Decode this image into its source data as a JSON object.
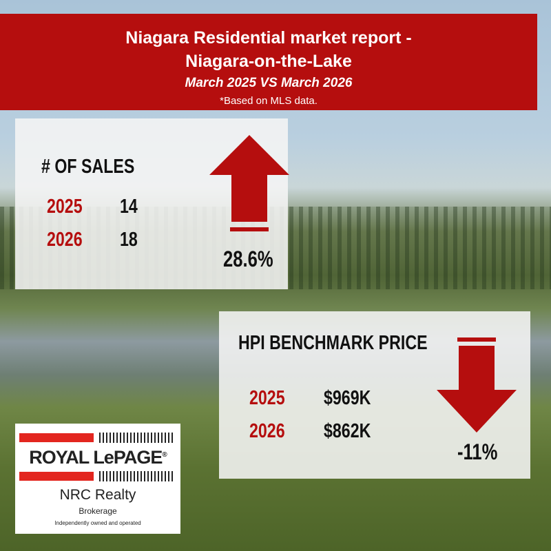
{
  "banner": {
    "title1": "Niagara Residential market report -",
    "title2": "Niagara-on-the-Lake",
    "subtitle": "March 2025 VS March 2026",
    "note": "*Based on MLS data."
  },
  "sales": {
    "heading": "# OF SALES",
    "rows": [
      {
        "year": "2025",
        "value": "14"
      },
      {
        "year": "2026",
        "value": "18"
      }
    ],
    "change": "28.6%",
    "direction": "up"
  },
  "hpi": {
    "heading": "HPI BENCHMARK PRICE",
    "rows": [
      {
        "year": "2025",
        "value": "$969K"
      },
      {
        "year": "2026",
        "value": "$862K"
      }
    ],
    "change": "-11%",
    "direction": "down"
  },
  "logo": {
    "brand": "ROYAL LePAGE",
    "registered": "®",
    "office": "NRC Realty",
    "type": "Brokerage",
    "tagline": "Independently owned and operated"
  },
  "colors": {
    "accent": "#b50e0e"
  }
}
